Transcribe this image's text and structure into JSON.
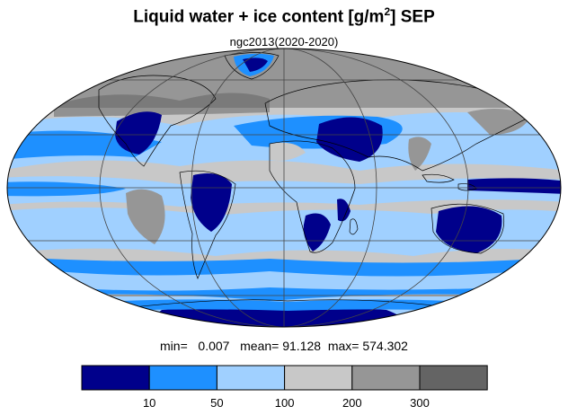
{
  "title_main": "Liquid water + ice content [g/m",
  "title_sup": "2",
  "title_end": "] SEP",
  "subtitle": "ngc2013(2020-2020)",
  "stats": {
    "min_label": "min=",
    "min_value": "0.007",
    "mean_label": "mean=",
    "mean_value": "91.128",
    "max_label": "max=",
    "max_value": "574.302"
  },
  "colorbar": {
    "ticks": [
      "10",
      "50",
      "100",
      "200",
      "300"
    ],
    "colors": [
      "#00008b",
      "#1e90ff",
      "#a0d0ff",
      "#c8c8c8",
      "#969696",
      "#646464"
    ]
  },
  "map": {
    "projection": "mollweide",
    "land_outline_color": "#000000",
    "grid_color": "#444444"
  }
}
